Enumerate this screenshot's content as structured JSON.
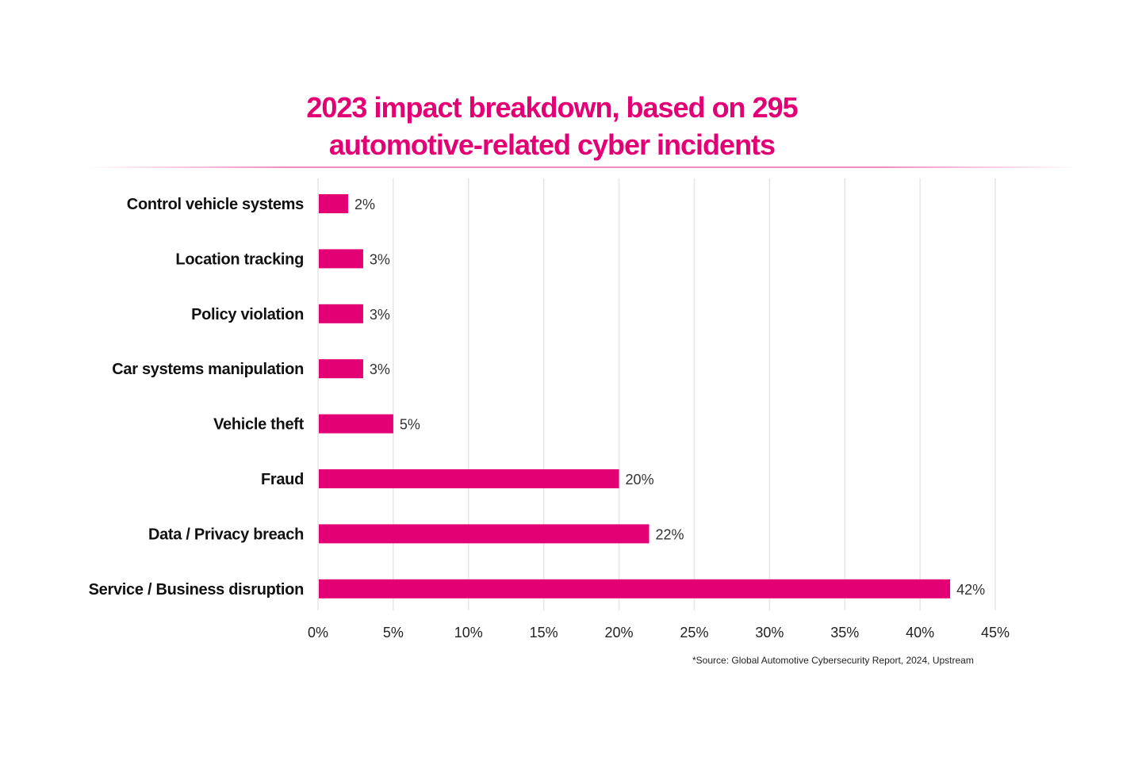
{
  "chart_data": {
    "type": "bar",
    "orientation": "horizontal",
    "title": "2023 impact breakdown, based on 295 automotive-related cyber incidents",
    "title_lines": [
      "2023 impact breakdown, based on 295",
      "automotive-related cyber incidents"
    ],
    "categories": [
      "Control vehicle systems",
      "Location tracking",
      "Policy violation",
      "Car systems manipulation",
      "Vehicle theft",
      "Fraud",
      "Data / Privacy breach",
      "Service / Business disruption"
    ],
    "values": [
      2,
      3,
      3,
      3,
      5,
      20,
      22,
      42
    ],
    "data_labels": [
      "2%",
      "3%",
      "3%",
      "3%",
      "5%",
      "20%",
      "22%",
      "42%"
    ],
    "xlim": [
      0,
      45
    ],
    "x_ticks": [
      "0%",
      "5%",
      "10%",
      "15%",
      "20%",
      "25%",
      "30%",
      "35%",
      "40%",
      "45%"
    ],
    "grid": "vertical",
    "bar_color": "#e20074",
    "title_color": "#e20074",
    "source": "*Source: Global Automotive Cybersecurity Report, 2024, Upstream"
  }
}
